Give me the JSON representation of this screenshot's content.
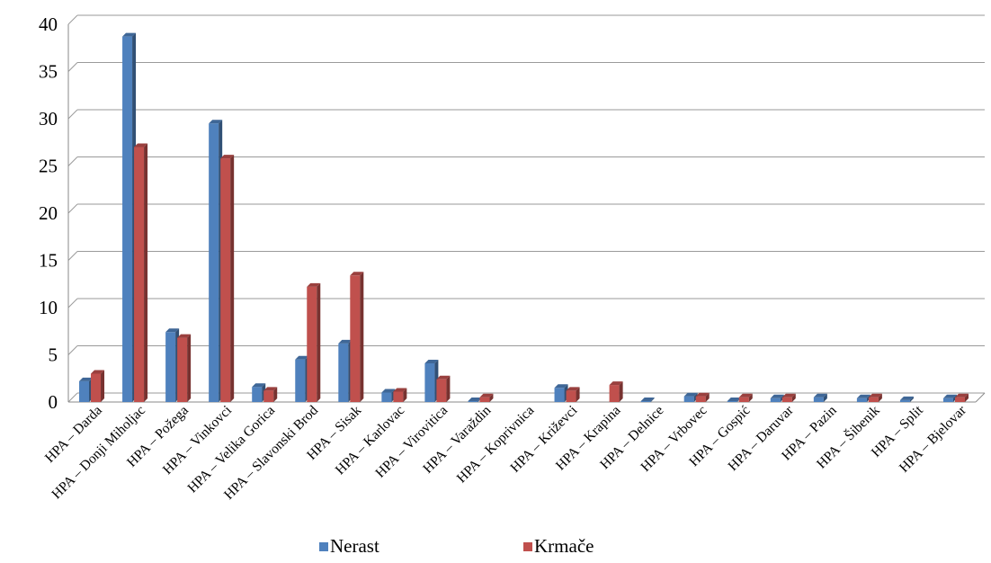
{
  "chart_data": {
    "type": "bar",
    "style": "3d-clustered-column",
    "categories": [
      "HPA – Darda",
      "HPA – Donji Miholjac",
      "HPA – Požega",
      "HPA – Vinkovci",
      "HPA – Velika Gorica",
      "HPA – Slavonski Brod",
      "HPA – Sisak",
      "HPA – Karlovac",
      "HPA – Virovitica",
      "HPA – Varaždin",
      "HPA – Koprivnica",
      "HPA – Križevci",
      "HPA – Krapina",
      "HPA – Delnice",
      "HPA – Vrbovec",
      "HPA – Gospić",
      "HPA – Daruvar",
      "HPA – Pazin",
      "HPA – Šibenik",
      "HPA – Split",
      "HPA – Bjelovar"
    ],
    "series": [
      {
        "name": "Nerast",
        "color": "#4F81BD",
        "values": [
          2.2,
          38.7,
          7.4,
          29.5,
          1.6,
          4.5,
          6.2,
          1.0,
          4.1,
          0.1,
          0.0,
          1.5,
          0.0,
          0.1,
          0.6,
          0.1,
          0.4,
          0.5,
          0.4,
          0.2,
          0.4
        ]
      },
      {
        "name": "Krmače",
        "color": "#C0504D",
        "values": [
          3.0,
          27.0,
          6.8,
          25.8,
          1.2,
          12.2,
          13.4,
          1.1,
          2.4,
          0.5,
          0.0,
          1.2,
          1.8,
          0.0,
          0.6,
          0.5,
          0.5,
          0.0,
          0.5,
          0.0,
          0.5
        ]
      }
    ],
    "y_ticks": [
      "0",
      "5",
      "10",
      "15",
      "20",
      "25",
      "30",
      "35",
      "40"
    ],
    "ylim": [
      0,
      40
    ],
    "grid": true,
    "legend_position": "bottom",
    "title": "",
    "xlabel": "",
    "ylabel": ""
  }
}
